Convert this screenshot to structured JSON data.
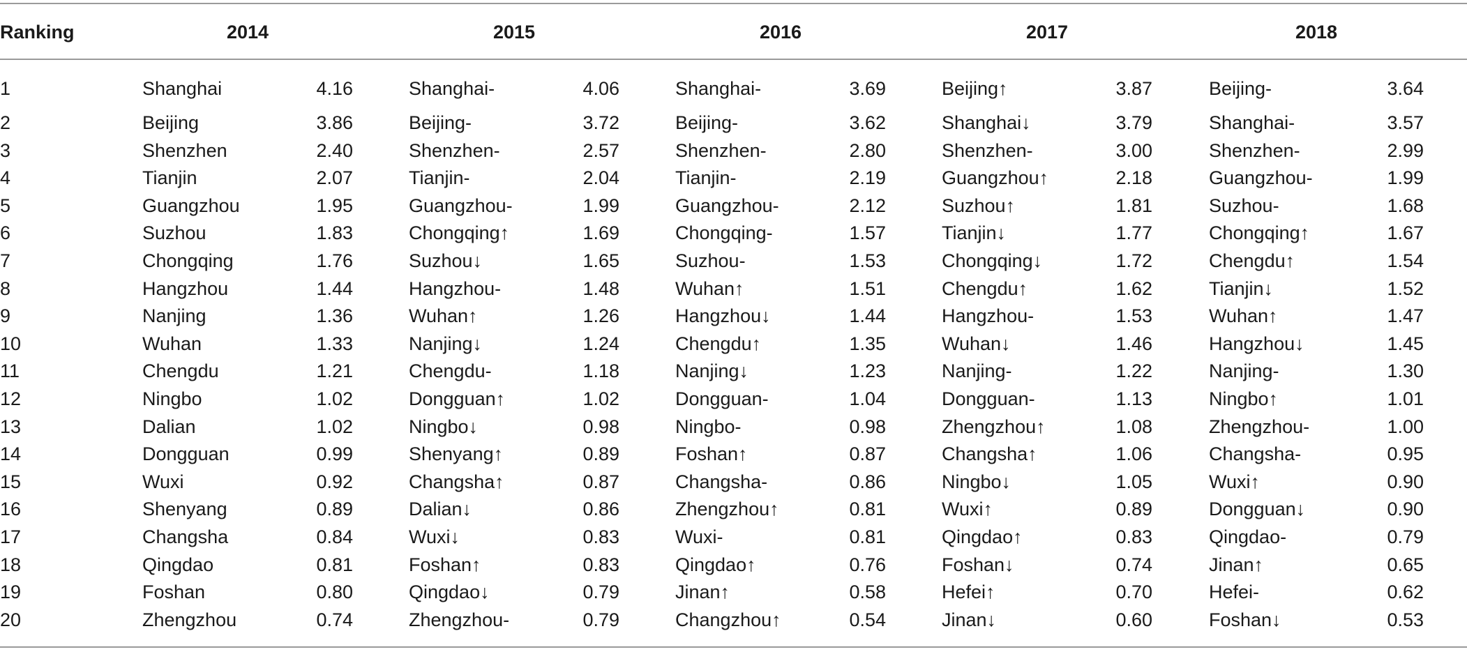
{
  "table": {
    "header": [
      "Ranking",
      "2014",
      "2015",
      "2016",
      "2017",
      "2018"
    ],
    "rows": [
      [
        "1",
        "Shanghai",
        "4.16",
        "Shanghai-",
        "4.06",
        "Shanghai-",
        "3.69",
        "Beijing↑",
        "3.87",
        "Beijing-",
        "3.64"
      ],
      [
        "2",
        "Beijing",
        "3.86",
        "Beijing-",
        "3.72",
        "Beijing-",
        "3.62",
        "Shanghai↓",
        "3.79",
        "Shanghai-",
        "3.57"
      ],
      [
        "3",
        "Shenzhen",
        "2.40",
        "Shenzhen-",
        "2.57",
        "Shenzhen-",
        "2.80",
        "Shenzhen-",
        "3.00",
        "Shenzhen-",
        "2.99"
      ],
      [
        "4",
        "Tianjin",
        "2.07",
        "Tianjin-",
        "2.04",
        "Tianjin-",
        "2.19",
        "Guangzhou↑",
        "2.18",
        "Guangzhou-",
        "1.99"
      ],
      [
        "5",
        "Guangzhou",
        "1.95",
        "Guangzhou-",
        "1.99",
        "Guangzhou-",
        "2.12",
        "Suzhou↑",
        "1.81",
        "Suzhou-",
        "1.68"
      ],
      [
        "6",
        "Suzhou",
        "1.83",
        "Chongqing↑",
        "1.69",
        "Chongqing-",
        "1.57",
        "Tianjin↓",
        "1.77",
        "Chongqing↑",
        "1.67"
      ],
      [
        "7",
        "Chongqing",
        "1.76",
        "Suzhou↓",
        "1.65",
        "Suzhou-",
        "1.53",
        "Chongqing↓",
        "1.72",
        "Chengdu↑",
        "1.54"
      ],
      [
        "8",
        "Hangzhou",
        "1.44",
        "Hangzhou-",
        "1.48",
        "Wuhan↑",
        "1.51",
        "Chengdu↑",
        "1.62",
        "Tianjin↓",
        "1.52"
      ],
      [
        "9",
        "Nanjing",
        "1.36",
        "Wuhan↑",
        "1.26",
        "Hangzhou↓",
        "1.44",
        "Hangzhou-",
        "1.53",
        "Wuhan↑",
        "1.47"
      ],
      [
        "10",
        "Wuhan",
        "1.33",
        "Nanjing↓",
        "1.24",
        "Chengdu↑",
        "1.35",
        "Wuhan↓",
        "1.46",
        "Hangzhou↓",
        "1.45"
      ],
      [
        "11",
        "Chengdu",
        "1.21",
        "Chengdu-",
        "1.18",
        "Nanjing↓",
        "1.23",
        "Nanjing-",
        "1.22",
        "Nanjing-",
        "1.30"
      ],
      [
        "12",
        "Ningbo",
        "1.02",
        "Dongguan↑",
        "1.02",
        "Dongguan-",
        "1.04",
        "Dongguan-",
        "1.13",
        "Ningbo↑",
        "1.01"
      ],
      [
        "13",
        "Dalian",
        "1.02",
        "Ningbo↓",
        "0.98",
        "Ningbo-",
        "0.98",
        "Zhengzhou↑",
        "1.08",
        "Zhengzhou-",
        "1.00"
      ],
      [
        "14",
        "Dongguan",
        "0.99",
        "Shenyang↑",
        "0.89",
        "Foshan↑",
        "0.87",
        "Changsha↑",
        "1.06",
        "Changsha-",
        "0.95"
      ],
      [
        "15",
        "Wuxi",
        "0.92",
        "Changsha↑",
        "0.87",
        "Changsha-",
        "0.86",
        "Ningbo↓",
        "1.05",
        "Wuxi↑",
        "0.90"
      ],
      [
        "16",
        "Shenyang",
        "0.89",
        "Dalian↓",
        "0.86",
        "Zhengzhou↑",
        "0.81",
        "Wuxi↑",
        "0.89",
        "Dongguan↓",
        "0.90"
      ],
      [
        "17",
        "Changsha",
        "0.84",
        "Wuxi↓",
        "0.83",
        "Wuxi-",
        "0.81",
        "Qingdao↑",
        "0.83",
        "Qingdao-",
        "0.79"
      ],
      [
        "18",
        "Qingdao",
        "0.81",
        "Foshan↑",
        "0.83",
        "Qingdao↑",
        "0.76",
        "Foshan↓",
        "0.74",
        "Jinan↑",
        "0.65"
      ],
      [
        "19",
        "Foshan",
        "0.80",
        "Qingdao↓",
        "0.79",
        "Jinan↑",
        "0.58",
        "Hefei↑",
        "0.70",
        "Hefei-",
        "0.62"
      ],
      [
        "20",
        "Zhengzhou",
        "0.74",
        "Zhengzhou-",
        "0.79",
        "Changzhou↑",
        "0.54",
        "Jinan↓",
        "0.60",
        "Foshan↓",
        "0.53"
      ]
    ]
  }
}
